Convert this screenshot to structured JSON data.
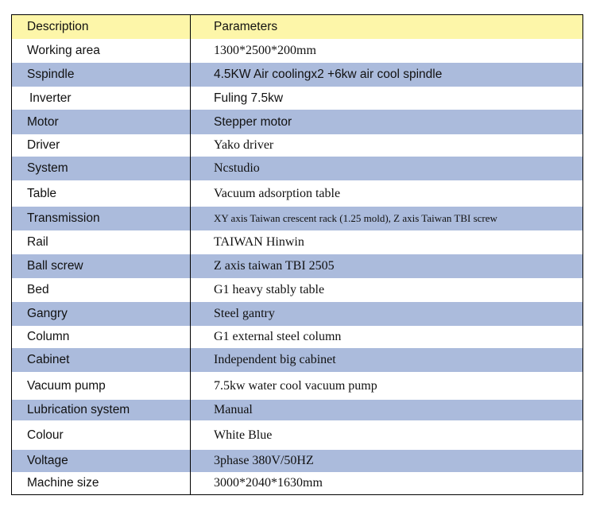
{
  "colors": {
    "header": "#fdf6a9",
    "band": "#abbbdc",
    "plain": "#ffffff"
  },
  "header": {
    "description": "Description",
    "parameters": "Parameters"
  },
  "rows": [
    {
      "description": "Working area",
      "parameter": "1300*2500*200mm"
    },
    {
      "description": "Sspindle",
      "parameter": "4.5KW Air coolingx2 +6kw air cool spindle"
    },
    {
      "description": "Inverter",
      "parameter": "Fuling 7.5kw"
    },
    {
      "description": "Motor",
      "parameter": "Stepper motor"
    },
    {
      "description": "Driver",
      "parameter": "Yako driver"
    },
    {
      "description": "System",
      "parameter": "Ncstudio"
    },
    {
      "description": "Table",
      "parameter": "Vacuum adsorption table"
    },
    {
      "description": "Transmission",
      "parameter": "XY axis Taiwan crescent  rack (1.25 mold), Z axis Taiwan TBI screw"
    },
    {
      "description": "Rail",
      "parameter": "TAIWAN Hinwin"
    },
    {
      "description": "Ball screw",
      "parameter": "Z axis taiwan TBI 2505"
    },
    {
      "description": "Bed",
      "parameter": "G1 heavy stably table"
    },
    {
      "description": "Gangry",
      "parameter": "Steel gantry"
    },
    {
      "description": "Column",
      "parameter": "G1 external steel column"
    },
    {
      "description": "Cabinet",
      "parameter": "Independent big cabinet"
    },
    {
      "description": "Vacuum pump",
      "parameter": "7.5kw water cool vacuum pump"
    },
    {
      "description": "Lubrication system",
      "parameter": "Manual"
    },
    {
      "description": "Colour",
      "parameter": "White Blue"
    },
    {
      "description": "Voltage",
      "parameter": "3phase 380V/50HZ"
    },
    {
      "description": "Machine size",
      "parameter": "3000*2040*1630mm"
    }
  ]
}
